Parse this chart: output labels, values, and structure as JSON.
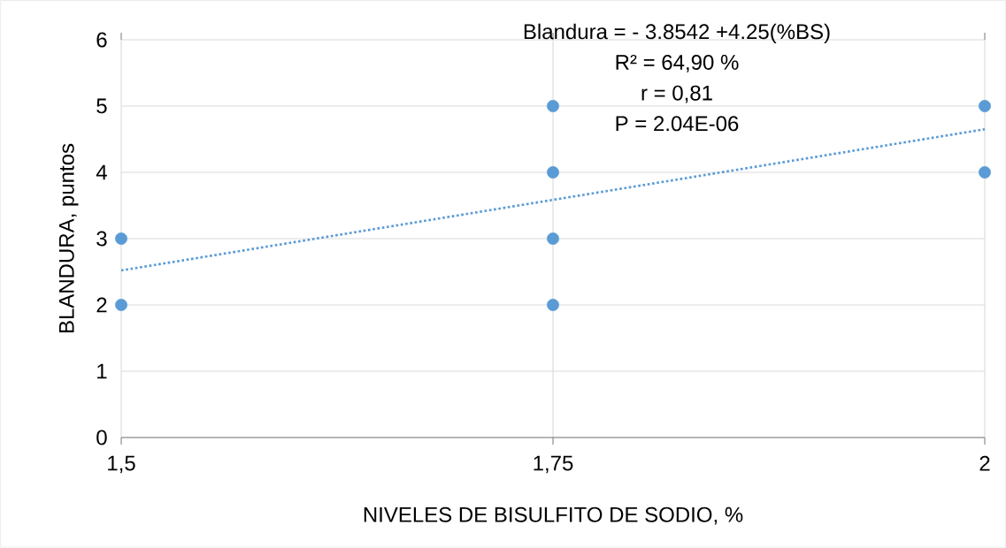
{
  "chart_data": {
    "type": "scatter",
    "xlabel": "NIVELES DE BISULFITO DE SODIO, %",
    "ylabel": "BLANDURA, puntos",
    "annotations": [
      "Blandura = - 3.8542 +4.25(%BS)",
      "R² = 64,90 %",
      "r = 0,81",
      "P = 2.04E-06"
    ],
    "series": [
      {
        "x": [
          1.5,
          1.5,
          1.75,
          1.75,
          1.75,
          1.75,
          2,
          2
        ],
        "values": [
          3,
          2,
          5,
          4,
          3,
          2,
          5,
          4
        ],
        "color": "#5b9bd5"
      },
      {
        "type": "line",
        "x": [
          1.5,
          2
        ],
        "values": [
          2.52,
          4.65
        ],
        "color": "#5b9bd5",
        "line_style": "dotted",
        "marker": "none"
      }
    ],
    "marker": "circle",
    "grid": true,
    "xlim": [
      1.5,
      2
    ],
    "xticks": [
      {
        "value": 1.5,
        "label": "1,5"
      },
      {
        "value": 1.75,
        "label": "1,75"
      },
      2
    ],
    "ylim": [
      0,
      6
    ],
    "yticks": [
      0,
      1,
      2,
      3,
      4,
      5,
      6
    ]
  }
}
